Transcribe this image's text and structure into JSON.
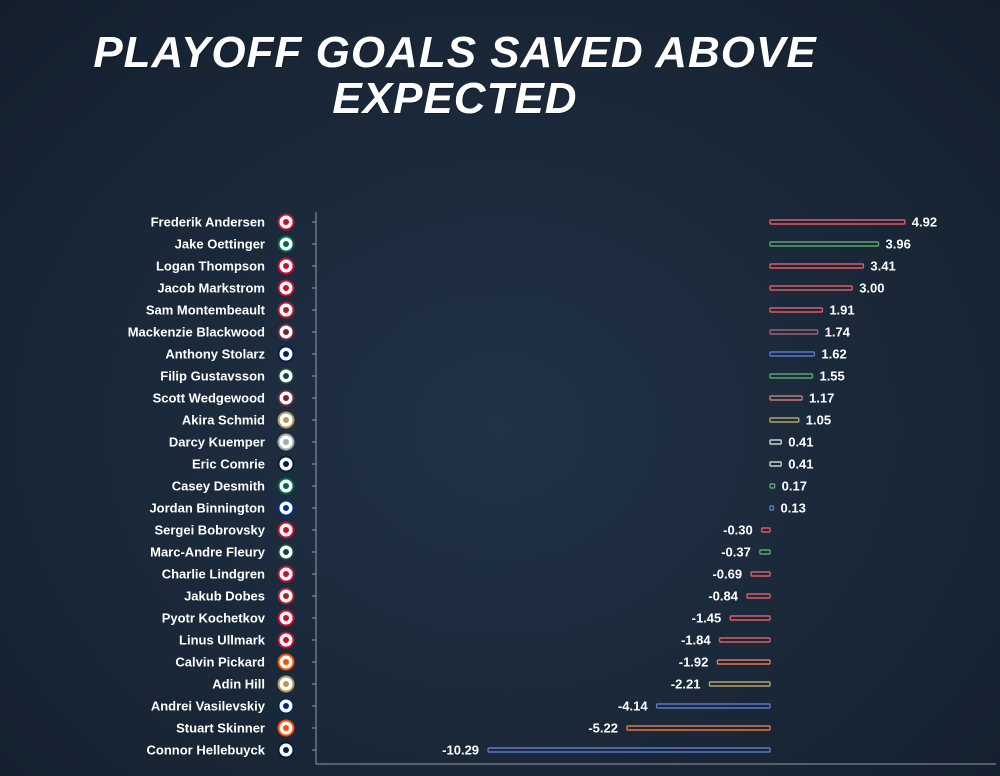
{
  "title_lines": [
    "PLAYOFF GOALS SAVED ABOVE",
    "EXPECTED"
  ],
  "chart_data": {
    "type": "bar",
    "orientation": "horizontal",
    "title": "PLAYOFF GOALS SAVED ABOVE EXPECTED",
    "xlabel": "",
    "ylabel": "",
    "xlim": [
      -10.29,
      4.92
    ],
    "grid": false,
    "categories": [
      "Frederik Andersen",
      "Jake Oettinger",
      "Logan Thompson",
      "Jacob Markstrom",
      "Sam Montembeault",
      "Mackenzie Blackwood",
      "Anthony Stolarz",
      "Filip Gustavsson",
      "Scott Wedgewood",
      "Akira Schmid",
      "Darcy Kuemper",
      "Eric Comrie",
      "Casey Desmith",
      "Jordan Binnington",
      "Sergei Bobrovsky",
      "Marc-Andre Fleury",
      "Charlie Lindgren",
      "Jakub Dobes",
      "Pyotr Kochetkov",
      "Linus Ullmark",
      "Calvin Pickard",
      "Adin Hill",
      "Andrei Vasilevskiy",
      "Stuart Skinner",
      "Connor Hellebuyck"
    ],
    "values": [
      4.92,
      3.96,
      3.41,
      3.0,
      1.91,
      1.74,
      1.62,
      1.55,
      1.17,
      1.05,
      0.41,
      0.41,
      0.17,
      0.13,
      -0.3,
      -0.37,
      -0.69,
      -0.84,
      -1.45,
      -1.84,
      -1.92,
      -2.21,
      -4.14,
      -5.22,
      -10.29
    ],
    "value_labels": [
      "4.92",
      "3.96",
      "3.41",
      "3.00",
      "1.91",
      "1.74",
      "1.62",
      "1.55",
      "1.17",
      "1.05",
      "0.41",
      "0.41",
      "0.17",
      "0.13",
      "-0.30",
      "-0.37",
      "-0.69",
      "-0.84",
      "-1.45",
      "-1.84",
      "-1.92",
      "-2.21",
      "-4.14",
      "-5.22",
      "-10.29"
    ],
    "bar_colors": [
      "#e05a63",
      "#5aa571",
      "#e05a63",
      "#e05a63",
      "#e05a63",
      "#a0607a",
      "#5a78c8",
      "#5aa571",
      "#c87878",
      "#b7a46a",
      "#cfcfcf",
      "#cfcfcf",
      "#5aa571",
      "#5a78c8",
      "#e05a63",
      "#5aa571",
      "#e05a63",
      "#e05a63",
      "#e05a63",
      "#e05a63",
      "#e07a4a",
      "#b7a46a",
      "#5a78c8",
      "#e07a4a",
      "#5a78c8"
    ],
    "team_logos": [
      "hurricanes-logo",
      "stars-logo",
      "capitals-logo",
      "devils-logo",
      "canadiens-logo",
      "avalanche-logo",
      "maple-leafs-logo",
      "wild-logo",
      "avalanche-logo",
      "golden-knights-logo",
      "kings-logo",
      "jets-logo",
      "stars-logo",
      "blues-logo",
      "panthers-logo",
      "wild-logo",
      "capitals-logo",
      "canadiens-logo",
      "hurricanes-logo",
      "senators-logo",
      "oilers-logo",
      "golden-knights-logo",
      "lightning-logo",
      "oilers-logo",
      "jets-logo"
    ],
    "logo_colors": [
      "#c8102e",
      "#006847",
      "#c8102e",
      "#c8102e",
      "#af1e2d",
      "#6f263d",
      "#00205b",
      "#154734",
      "#6f263d",
      "#b4975a",
      "#a2aaad",
      "#041e42",
      "#006847",
      "#002f87",
      "#c8102e",
      "#154734",
      "#c8102e",
      "#af1e2d",
      "#c8102e",
      "#c8102e",
      "#ff4c00",
      "#b4975a",
      "#002868",
      "#ff4c00",
      "#041e42"
    ]
  }
}
